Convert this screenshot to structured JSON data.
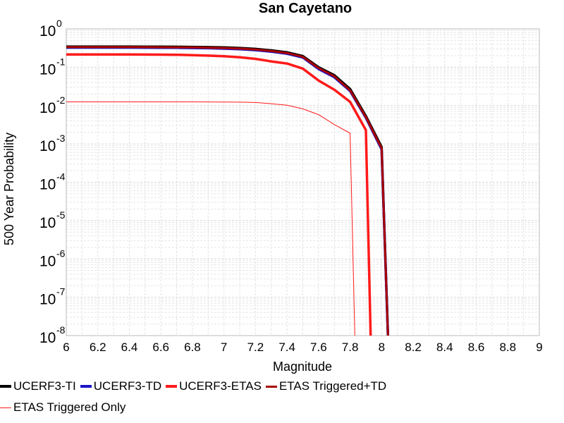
{
  "chart_data": {
    "type": "line",
    "title": "San Cayetano",
    "xlabel": "Magnitude",
    "ylabel": "500 Year Probability",
    "xlim": [
      6,
      9
    ],
    "ylim": [
      1e-08,
      1
    ],
    "y_scale": "log",
    "grid": true,
    "x_ticks": [
      "6",
      "6.2",
      "6.4",
      "6.6",
      "6.8",
      "7",
      "7.2",
      "7.4",
      "7.6",
      "7.8",
      "8",
      "8.2",
      "8.4",
      "8.6",
      "8.8",
      "9"
    ],
    "y_ticks": [
      {
        "base": "10",
        "exp": "0",
        "value": 1
      },
      {
        "base": "10",
        "exp": "-1",
        "value": 0.1
      },
      {
        "base": "10",
        "exp": "-2",
        "value": 0.01
      },
      {
        "base": "10",
        "exp": "-3",
        "value": 0.001
      },
      {
        "base": "10",
        "exp": "-4",
        "value": 0.0001
      },
      {
        "base": "10",
        "exp": "-5",
        "value": 1e-05
      },
      {
        "base": "10",
        "exp": "-6",
        "value": 1e-06
      },
      {
        "base": "10",
        "exp": "-7",
        "value": 1e-07
      },
      {
        "base": "10",
        "exp": "-8",
        "value": 1e-08
      }
    ],
    "legend_position": "bottom",
    "series": [
      {
        "name": "UCERF3-TI",
        "color": "#000000",
        "width": 3.5,
        "x": [
          6.0,
          6.1,
          6.2,
          6.3,
          6.4,
          6.5,
          6.6,
          6.7,
          6.8,
          6.9,
          7.0,
          7.1,
          7.2,
          7.3,
          7.4,
          7.5,
          7.6,
          7.7,
          7.8,
          7.9,
          8.0,
          8.04
        ],
        "y": [
          0.345,
          0.345,
          0.345,
          0.345,
          0.345,
          0.344,
          0.343,
          0.341,
          0.338,
          0.334,
          0.328,
          0.318,
          0.3,
          0.275,
          0.245,
          0.195,
          0.1,
          0.062,
          0.027,
          0.0053,
          0.00083,
          1e-08
        ]
      },
      {
        "name": "UCERF3-TD",
        "color": "#1a14c8",
        "width": 3.5,
        "x": [
          6.0,
          6.1,
          6.2,
          6.3,
          6.4,
          6.5,
          6.6,
          6.7,
          6.8,
          6.9,
          7.0,
          7.1,
          7.2,
          7.3,
          7.4,
          7.5,
          7.6,
          7.7,
          7.8,
          7.9,
          8.0,
          8.04
        ],
        "y": [
          0.325,
          0.325,
          0.325,
          0.325,
          0.325,
          0.324,
          0.323,
          0.321,
          0.318,
          0.313,
          0.306,
          0.296,
          0.28,
          0.255,
          0.225,
          0.18,
          0.09,
          0.055,
          0.024,
          0.0048,
          0.00072,
          1e-08
        ]
      },
      {
        "name": "UCERF3-ETAS",
        "color": "#ff1a1a",
        "width": 3.5,
        "x": [
          6.0,
          6.1,
          6.2,
          6.3,
          6.4,
          6.5,
          6.6,
          6.7,
          6.8,
          6.9,
          7.0,
          7.1,
          7.2,
          7.3,
          7.4,
          7.5,
          7.6,
          7.7,
          7.8,
          7.9,
          7.93
        ],
        "y": [
          0.215,
          0.215,
          0.215,
          0.215,
          0.215,
          0.214,
          0.213,
          0.211,
          0.207,
          0.201,
          0.193,
          0.182,
          0.165,
          0.142,
          0.125,
          0.092,
          0.045,
          0.026,
          0.0125,
          0.0023,
          1e-08
        ]
      },
      {
        "name": "ETAS Triggered+TD",
        "color": "#aa0000",
        "width": 3,
        "x": [
          6.0,
          6.1,
          6.2,
          6.3,
          6.4,
          6.5,
          6.6,
          6.7,
          6.8,
          6.9,
          7.0,
          7.1,
          7.2,
          7.3,
          7.4,
          7.5,
          7.6,
          7.7,
          7.8,
          7.9,
          8.0,
          8.04
        ],
        "y": [
          0.335,
          0.335,
          0.335,
          0.335,
          0.335,
          0.334,
          0.333,
          0.331,
          0.328,
          0.323,
          0.317,
          0.307,
          0.29,
          0.265,
          0.235,
          0.187,
          0.095,
          0.058,
          0.025,
          0.005,
          0.00077,
          1e-08
        ]
      },
      {
        "name": "ETAS Triggered Only",
        "color": "#ff1a1a",
        "width": 1,
        "x": [
          6.0,
          6.2,
          6.4,
          6.6,
          6.8,
          7.0,
          7.1,
          7.2,
          7.3,
          7.4,
          7.5,
          7.6,
          7.7,
          7.8,
          7.83
        ],
        "y": [
          0.0125,
          0.0125,
          0.0125,
          0.0125,
          0.0125,
          0.0124,
          0.0123,
          0.012,
          0.0112,
          0.0102,
          0.0082,
          0.0058,
          0.0032,
          0.0019,
          1e-08
        ]
      }
    ]
  }
}
